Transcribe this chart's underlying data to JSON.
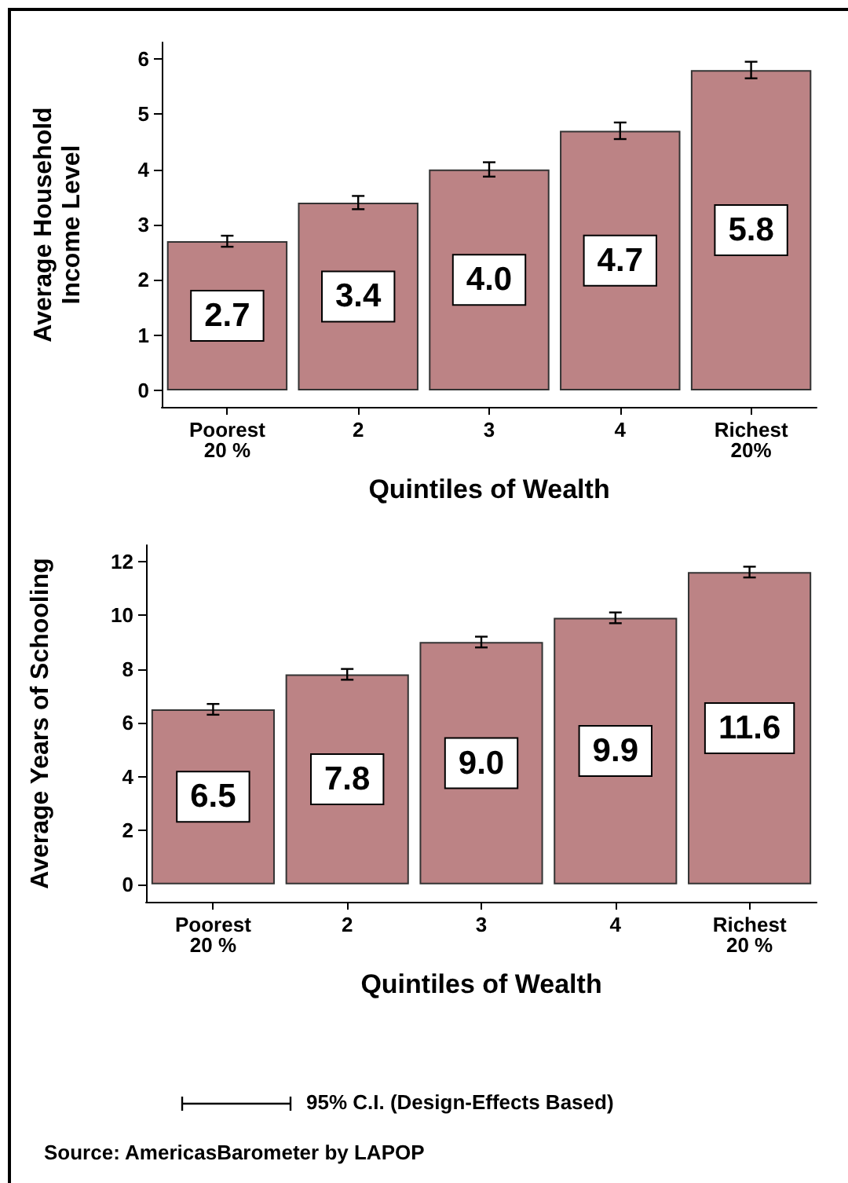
{
  "chart_data": [
    {
      "type": "bar",
      "ylabel": "Average Household\nIncome Level",
      "xlabel": "Quintiles of Wealth",
      "categories": [
        "Poorest\n20 %",
        "2",
        "3",
        "4",
        "Richest\n20%"
      ],
      "series": [
        {
          "color": "#bc8385",
          "values": [
            2.7,
            3.4,
            4.0,
            4.7,
            5.8
          ],
          "errors": [
            0.1,
            0.12,
            0.13,
            0.15,
            0.15
          ],
          "value_labels": [
            "2.7",
            "3.4",
            "4.0",
            "4.7",
            "5.8"
          ]
        }
      ],
      "ylim": [
        -0.3,
        6.3
      ],
      "yticks": [
        0,
        1,
        2,
        3,
        4,
        5,
        6
      ]
    },
    {
      "type": "bar",
      "ylabel": "Average Years of Schooling",
      "xlabel": "Quintiles of Wealth",
      "categories": [
        "Poorest\n20 %",
        "2",
        "3",
        "4",
        "Richest\n20 %"
      ],
      "series": [
        {
          "color": "#bc8385",
          "values": [
            6.5,
            7.8,
            9.0,
            9.9,
            11.6
          ],
          "errors": [
            0.2,
            0.2,
            0.2,
            0.2,
            0.2
          ],
          "value_labels": [
            "6.5",
            "7.8",
            "9.0",
            "9.9",
            "11.6"
          ]
        }
      ],
      "ylim": [
        -0.65,
        12.6
      ],
      "yticks": [
        0,
        2,
        4,
        6,
        8,
        10,
        12
      ],
      "annotations": [
        "95% C.I. (Design-Effects Based)",
        "Source: AmericasBarometer by LAPOP"
      ]
    }
  ]
}
